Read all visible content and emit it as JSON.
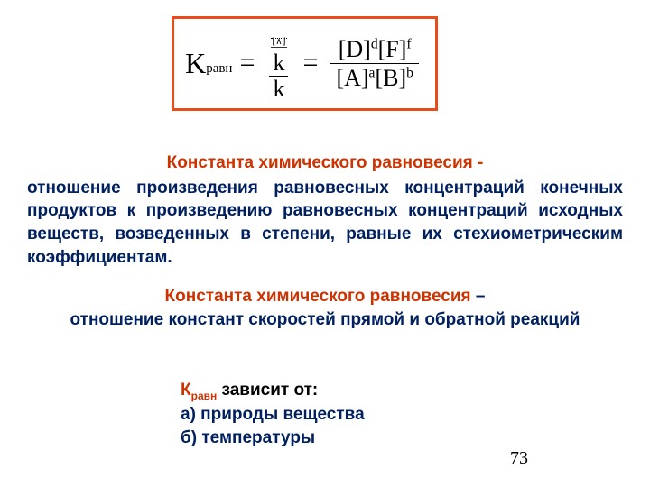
{
  "colors": {
    "border": "#e84c1a",
    "heading": "#cc3300",
    "body_blue": "#002060",
    "black": "#000000",
    "background": "#ffffff"
  },
  "formula": {
    "K_label": "K",
    "K_sub": "равн",
    "eq": "=",
    "ratio_k": {
      "num_symbol": "k",
      "num_over": "⎯⎯",
      "den": "k"
    },
    "ratio_conc": {
      "num_D": "[D]",
      "num_D_sup": "d",
      "num_F": "[F]",
      "num_F_sup": "f",
      "den_A": "[A]",
      "den_A_sup": "a",
      "den_B": "[B]",
      "den_B_sup": "b"
    }
  },
  "def1": {
    "heading": "Константа химического равновесия -",
    "content": "отношение произведения равновесных концентраций конечных продуктов к произведению равновесных концентраций исходных веществ, возведенных в степени, равные их стехиометрическим коэффициентам."
  },
  "def2": {
    "heading": "Константа химического равновесия",
    "dash": " –",
    "content": "отношение констант скоростей прямой и обратной реакций"
  },
  "depends": {
    "K_label": "К",
    "K_sub": "равн",
    "rest": " зависит  от:",
    "a": "а) природы вещества",
    "b": "б) температуры"
  },
  "page_number": "73",
  "typography": {
    "body_fontsize_pt": 14,
    "formula_fontsize_pt": 24,
    "font_weight": "bold",
    "font_family": "Arial / Times"
  }
}
